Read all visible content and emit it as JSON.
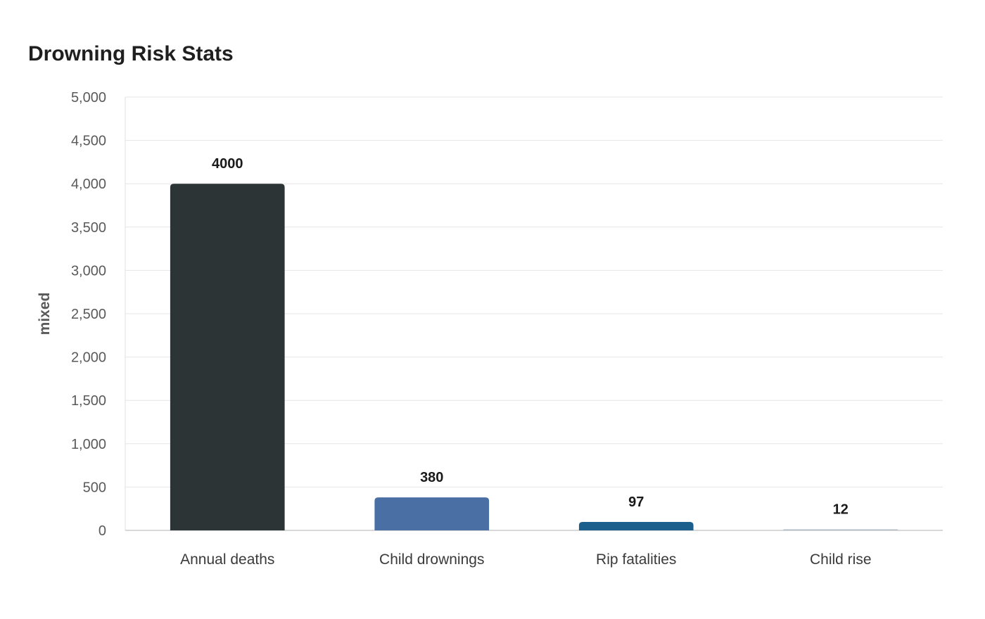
{
  "chart_data": {
    "type": "bar",
    "title": "Drowning Risk Stats",
    "xlabel": "",
    "ylabel": "mixed",
    "categories": [
      "Annual deaths",
      "Child drownings",
      "Rip fatalities",
      "Child rise"
    ],
    "values": [
      4000,
      380,
      97,
      12
    ],
    "ylim": [
      0,
      5000
    ],
    "yticks": [
      0,
      500,
      1000,
      1500,
      2000,
      2500,
      3000,
      3500,
      4000,
      4500,
      5000
    ],
    "ytick_labels": [
      "0",
      "500",
      "1,000",
      "1,500",
      "2,000",
      "2,500",
      "3,000",
      "3,500",
      "4,000",
      "4,500",
      "5,000"
    ],
    "colors": [
      "#2d3436",
      "#4a6fa5",
      "#1b5f8c",
      "#b2bec3"
    ],
    "grid": true,
    "legend": "none",
    "data_labels": true
  }
}
